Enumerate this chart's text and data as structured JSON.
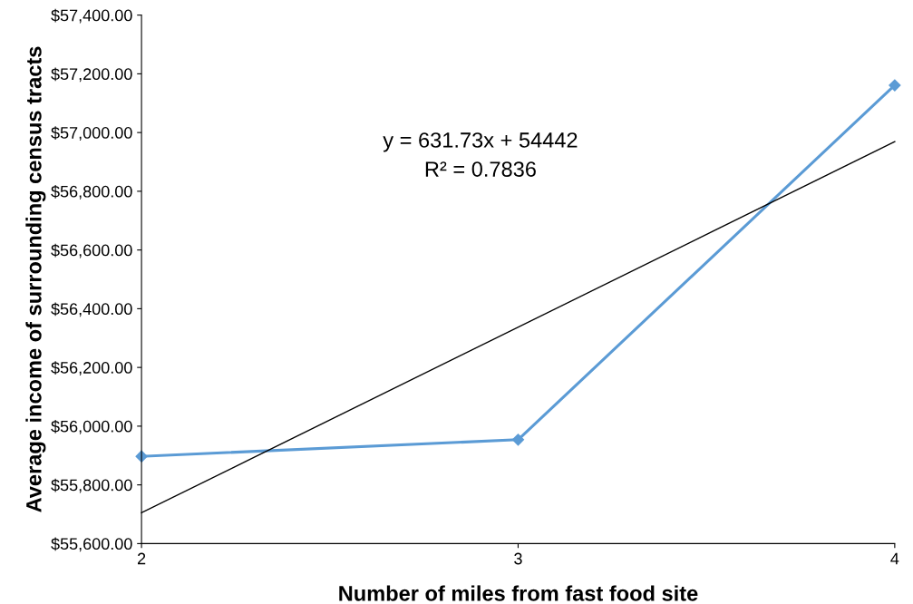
{
  "chart_data": {
    "type": "line",
    "xlabel": "Number of miles from fast food site",
    "ylabel": "Average income of surrounding census tracts",
    "x": [
      2,
      3,
      4
    ],
    "series": [
      {
        "color": "#5b9bd5",
        "values": [
          55897,
          55954,
          57161
        ],
        "marker": "diamond"
      },
      {
        "type": "line",
        "color": "#000000",
        "x": [
          2,
          4
        ],
        "values": [
          55705,
          56969
        ],
        "marker": "none"
      }
    ],
    "annotations": [
      "y = 631.73x + 54442",
      "R² = 0.7836"
    ],
    "xlim": [
      2,
      4
    ],
    "xticks": [
      2,
      3,
      4
    ],
    "ylim": [
      55600,
      57400
    ],
    "yticks": [
      {
        "value": 55600,
        "label": "$55,600.00"
      },
      {
        "value": 55800,
        "label": "$55,800.00"
      },
      {
        "value": 56000,
        "label": "$56,000.00"
      },
      {
        "value": 56200,
        "label": "$56,200.00"
      },
      {
        "value": 56400,
        "label": "$56,400.00"
      },
      {
        "value": 56600,
        "label": "$56,600.00"
      },
      {
        "value": 56800,
        "label": "$56,800.00"
      },
      {
        "value": 57000,
        "label": "$57,000.00"
      },
      {
        "value": 57200,
        "label": "$57,200.00"
      },
      {
        "value": 57400,
        "label": "$57,400.00"
      }
    ],
    "grid": false,
    "legend": false
  }
}
